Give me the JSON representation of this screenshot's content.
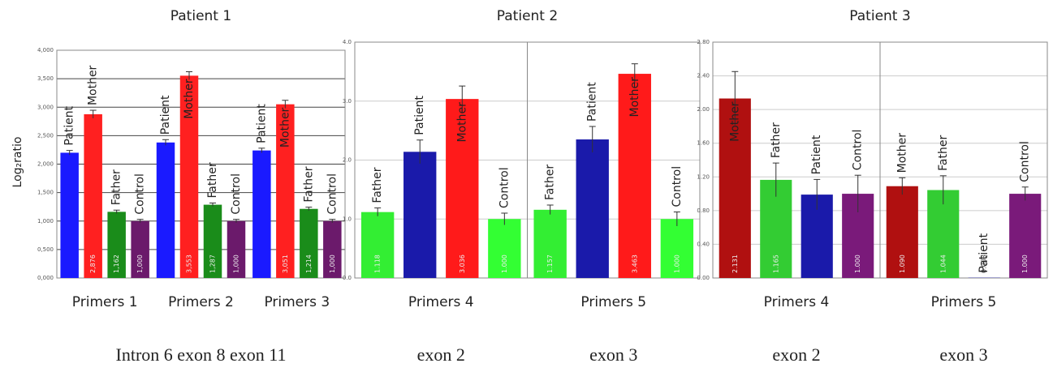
{
  "chart_data": [
    {
      "type": "bar",
      "title": "Patient 1",
      "y_label": "Log₂ratio",
      "categories": [
        "Primers 1",
        "Primers 2",
        "Primers 3"
      ],
      "ylim": [
        0,
        4
      ],
      "yticks": [
        {
          "value": 0,
          "label": "0,000"
        },
        {
          "value": 0.5,
          "label": "0,500"
        },
        {
          "value": 1,
          "label": "1,000"
        },
        {
          "value": 1.5,
          "label": "1,500"
        },
        {
          "value": 2,
          "label": "2,000"
        },
        {
          "value": 2.5,
          "label": "2,500"
        },
        {
          "value": 3,
          "label": "3,000"
        },
        {
          "value": 3.5,
          "label": "3,500"
        },
        {
          "value": 4,
          "label": "4,000"
        }
      ],
      "grid": true,
      "grid_color": "#444444",
      "divider": false,
      "annotations": [
        "Intron 6 exon 8 exon 11"
      ],
      "series": [
        {
          "name": "Patient",
          "color": "#1a1aff",
          "values": [
            2.2,
            2.38,
            2.24
          ],
          "errors": [
            0.04,
            0.05,
            0.04
          ]
        },
        {
          "name": "Mother",
          "color": "#ff2020",
          "values": [
            2.876,
            3.553,
            3.051
          ],
          "errors": [
            0.07,
            0.07,
            0.07
          ],
          "value_labels": [
            "2,876",
            "3,553",
            "3,051"
          ]
        },
        {
          "name": "Father",
          "color": "#1a8c1a",
          "values": [
            1.162,
            1.287,
            1.214
          ],
          "errors": [
            0.03,
            0.03,
            0.03
          ],
          "value_labels": [
            "1,162",
            "1,287",
            "1,214"
          ]
        },
        {
          "name": "Control",
          "color": "#6b1a6b",
          "values": [
            1,
            1,
            1
          ],
          "errors": [
            0.03,
            0.03,
            0.03
          ],
          "value_labels": [
            "1,000",
            "1,000",
            "1,000"
          ]
        }
      ]
    },
    {
      "type": "bar",
      "title": "Patient 2",
      "categories": [
        "Primers 4",
        "Primers 5"
      ],
      "ylim": [
        0,
        4
      ],
      "yticks": [
        {
          "value": 0,
          "label": "0.0"
        },
        {
          "value": 1,
          "label": "1.0"
        },
        {
          "value": 2,
          "label": "2.0"
        },
        {
          "value": 3,
          "label": "3.0"
        },
        {
          "value": 4,
          "label": "4.0"
        }
      ],
      "grid": true,
      "grid_color": "#cccccc",
      "divider": true,
      "annotations": [
        "exon 2",
        "exon 3"
      ],
      "series": [
        {
          "name": "Father",
          "color": "#33ee33",
          "values": [
            1.118,
            1.157
          ],
          "errors": [
            0.07,
            0.08
          ],
          "value_labels": [
            "1.118",
            "1.157"
          ]
        },
        {
          "name": "Patient",
          "color": "#1a1aaa",
          "values": [
            2.14,
            2.35
          ],
          "errors": [
            0.2,
            0.22
          ]
        },
        {
          "name": "Mother",
          "color": "#ff1a1a",
          "values": [
            3.036,
            3.463
          ],
          "errors": [
            0.22,
            0.17
          ],
          "value_labels": [
            "3.036",
            "3.463"
          ]
        },
        {
          "name": "Control",
          "color": "#33ff33",
          "values": [
            1,
            1
          ],
          "errors": [
            0.1,
            0.12
          ],
          "value_labels": [
            "1.000",
            "1.000"
          ]
        }
      ]
    },
    {
      "type": "bar",
      "title": "Patient 3",
      "categories": [
        "Primers 4",
        "Primers 5"
      ],
      "ylim": [
        0,
        2.8
      ],
      "yticks": [
        {
          "value": 0,
          "label": "0.00"
        },
        {
          "value": 0.4,
          "label": "0.40"
        },
        {
          "value": 0.8,
          "label": "0.80"
        },
        {
          "value": 1.2,
          "label": "1.20"
        },
        {
          "value": 1.6,
          "label": "1.60"
        },
        {
          "value": 2,
          "label": "2.00"
        },
        {
          "value": 2.4,
          "label": "2.40"
        },
        {
          "value": 2.8,
          "label": "2.80"
        }
      ],
      "grid": true,
      "grid_color": "#cccccc",
      "divider": true,
      "annotations": [
        "exon 2",
        "exon 3"
      ],
      "series": [
        {
          "name": "Mother",
          "color": "#b01010",
          "values": [
            2.131,
            1.09
          ],
          "errors": [
            0.32,
            0.1
          ],
          "value_labels": [
            "2.131",
            "1.090"
          ]
        },
        {
          "name": "Father",
          "color": "#33cc33",
          "values": [
            1.165,
            1.044
          ],
          "errors": [
            0.2,
            0.17
          ],
          "value_labels": [
            "1.165",
            "1.044"
          ]
        },
        {
          "name": "Patient",
          "color": "#1a1aaa",
          "values": [
            0.99,
            0.003
          ],
          "errors": [
            0.18,
            null
          ],
          "value_labels": [
            null,
            "0.003"
          ]
        },
        {
          "name": "Control",
          "color": "#7a1a7a",
          "values": [
            1,
            1
          ],
          "errors": [
            0.22,
            0.08
          ],
          "value_labels": [
            "1.000",
            "1.000"
          ]
        }
      ]
    }
  ]
}
